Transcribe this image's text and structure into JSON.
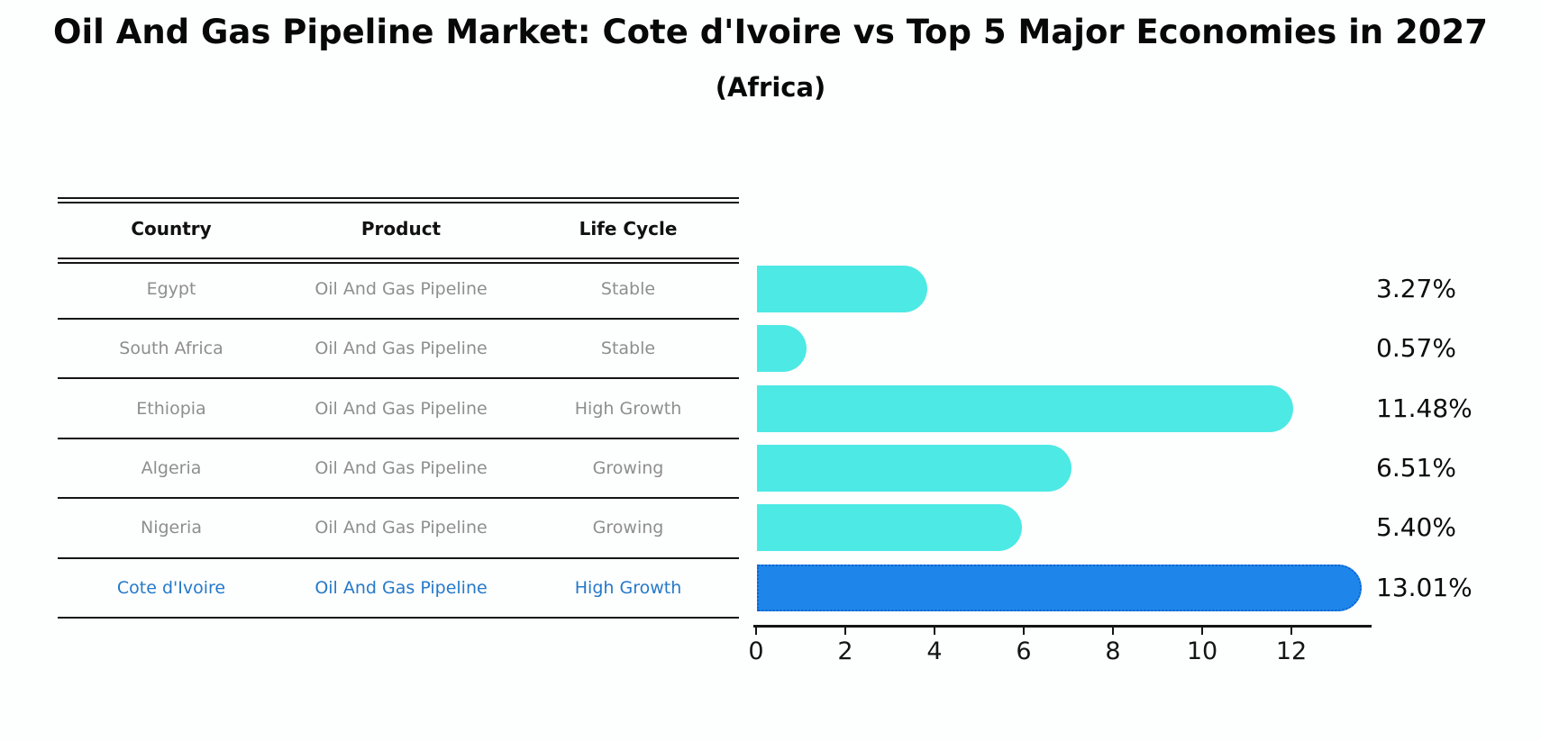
{
  "title": "Oil And Gas Pipeline Market: Cote d'Ivoire vs Top 5 Major Economies in 2027",
  "subtitle": "(Africa)",
  "table": {
    "headers": [
      "Country",
      "Product",
      "Life Cycle"
    ],
    "rows": [
      {
        "country": "Egypt",
        "product": "Oil And Gas Pipeline",
        "life_cycle": "Stable",
        "highlight": false
      },
      {
        "country": "South Africa",
        "product": "Oil And Gas Pipeline",
        "life_cycle": "Stable",
        "highlight": false
      },
      {
        "country": "Ethiopia",
        "product": "Oil And Gas Pipeline",
        "life_cycle": "High Growth",
        "highlight": false
      },
      {
        "country": "Algeria",
        "product": "Oil And Gas Pipeline",
        "life_cycle": "Growing",
        "highlight": false
      },
      {
        "country": "Nigeria",
        "product": "Oil And Gas Pipeline",
        "life_cycle": "Growing",
        "highlight": false
      },
      {
        "country": "Cote d'Ivoire",
        "product": "Oil And Gas Pipeline",
        "life_cycle": "High Growth",
        "highlight": true
      }
    ]
  },
  "chart_data": {
    "type": "bar",
    "orientation": "horizontal",
    "title": "Oil And Gas Pipeline Market: Cote d'Ivoire vs Top 5 Major Economies in 2027",
    "subtitle": "(Africa)",
    "categories": [
      "Egypt",
      "South Africa",
      "Ethiopia",
      "Algeria",
      "Nigeria",
      "Cote d'Ivoire"
    ],
    "values": [
      3.27,
      0.57,
      11.48,
      6.51,
      5.4,
      13.01
    ],
    "value_labels": [
      "3.27%",
      "0.57%",
      "11.48%",
      "6.51%",
      "5.40%",
      "13.01%"
    ],
    "xlabel": "",
    "ylabel": "",
    "xticks": [
      0,
      2,
      4,
      6,
      8,
      10,
      12
    ],
    "xlim": [
      0,
      13.8
    ],
    "grid": false,
    "legend": false,
    "highlight_index": 5
  },
  "colors": {
    "bar": "#4de9e4",
    "highlight_bar": "#1e86ea",
    "highlight_bar_border": "#0c64d0",
    "highlight_text": "#2579c8",
    "cell_text": "#8e8e8e",
    "header_text": "#111111",
    "axis": "#151515",
    "value_label_text": "#0d0d0d",
    "background": "#fdfefe"
  }
}
